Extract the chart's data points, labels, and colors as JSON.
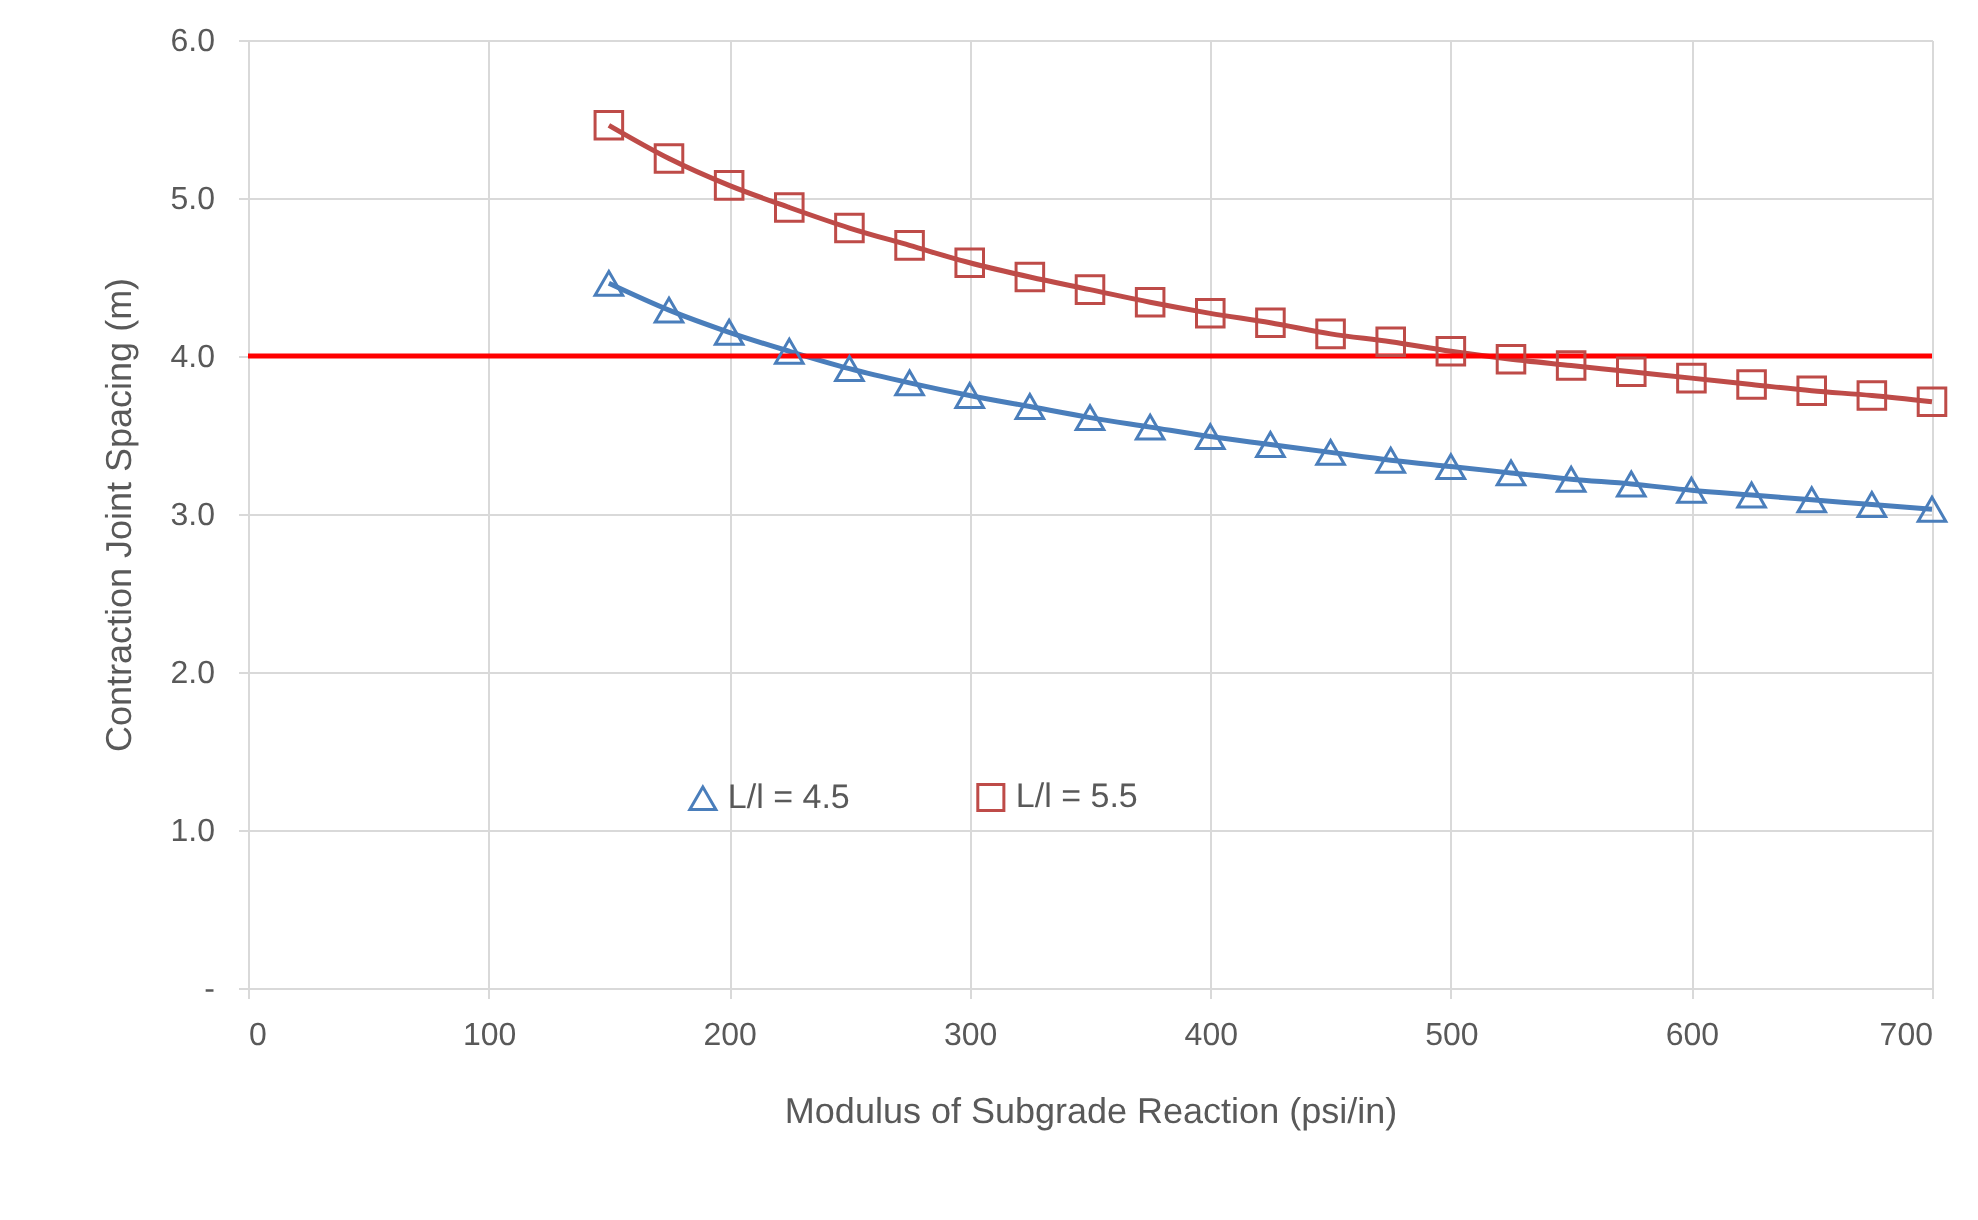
{
  "chart_data": {
    "type": "line",
    "xlabel": "Modulus of Subgrade Reaction (psi/in)",
    "ylabel": "Contraction Joint Spacing (m)",
    "x": [
      150,
      175,
      200,
      225,
      250,
      275,
      300,
      325,
      350,
      375,
      400,
      425,
      450,
      475,
      500,
      525,
      550,
      575,
      600,
      625,
      650,
      675,
      700
    ],
    "series": [
      {
        "name": "L/l = 4.5",
        "color": "#4a7ebb",
        "marker": "triangle",
        "values": [
          4.46,
          4.29,
          4.15,
          4.03,
          3.92,
          3.83,
          3.75,
          3.68,
          3.61,
          3.55,
          3.49,
          3.44,
          3.39,
          3.34,
          3.3,
          3.26,
          3.22,
          3.19,
          3.15,
          3.12,
          3.09,
          3.06,
          3.03
        ]
      },
      {
        "name": "L/l = 5.5",
        "color": "#be4b48",
        "marker": "square",
        "values": [
          5.46,
          5.25,
          5.08,
          4.94,
          4.81,
          4.7,
          4.59,
          4.5,
          4.42,
          4.34,
          4.27,
          4.21,
          4.14,
          4.09,
          4.03,
          3.98,
          3.94,
          3.9,
          3.86,
          3.82,
          3.78,
          3.75,
          3.71
        ]
      }
    ],
    "xlim": [
      0,
      700
    ],
    "xticks": [
      0,
      100,
      200,
      300,
      400,
      500,
      600,
      700
    ],
    "ylim": [
      0,
      6
    ],
    "yticks": [
      {
        "value": 0,
        "label": "-"
      },
      {
        "value": 1,
        "label": "1.0"
      },
      {
        "value": 2,
        "label": "2.0"
      },
      {
        "value": 3,
        "label": "3.0"
      },
      {
        "value": 4,
        "label": "4.0"
      },
      {
        "value": 5,
        "label": "5.0"
      },
      {
        "value": 6,
        "label": "6.0"
      }
    ],
    "ref_lines": [
      {
        "axis": "y",
        "value": 4,
        "color": "#ff0000"
      }
    ],
    "grid": true,
    "legend": "bottom",
    "line_style": "solid"
  }
}
